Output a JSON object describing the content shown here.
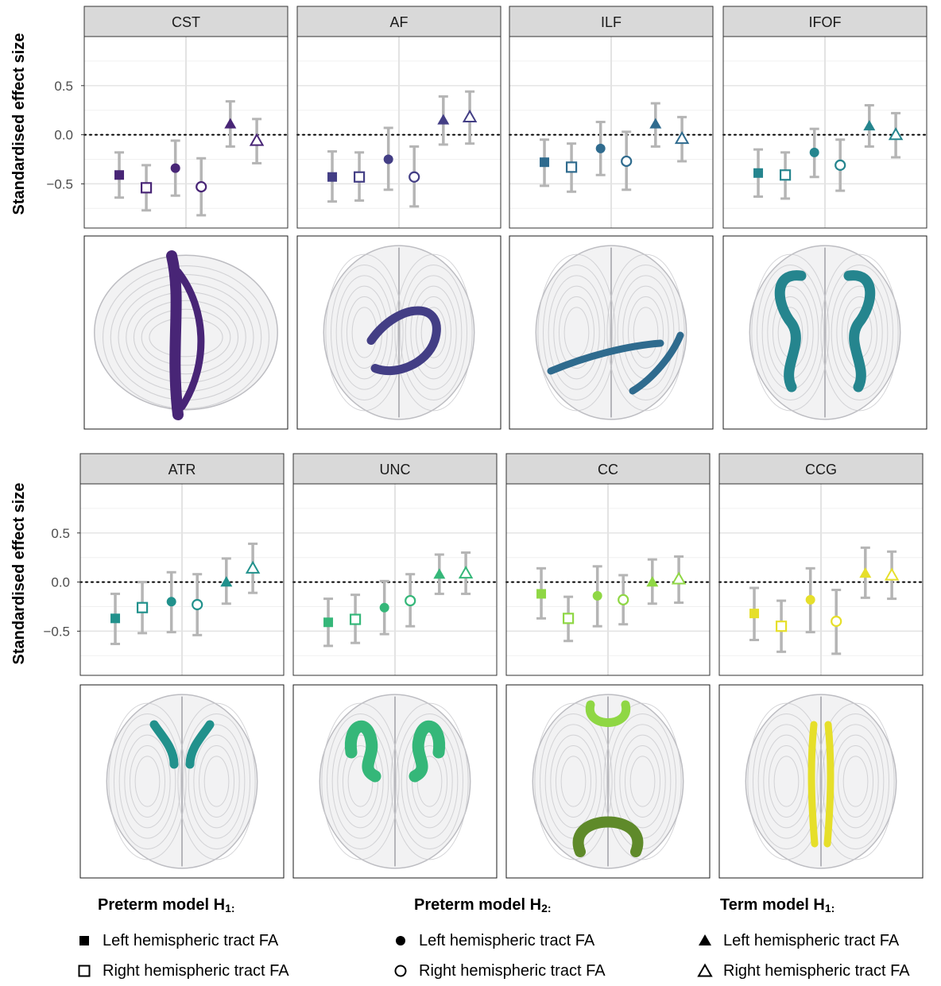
{
  "colors": {
    "CST": "#482576",
    "AF": "#433e85",
    "ILF": "#2f6b8e",
    "IFOF": "#25858e",
    "ATR": "#21918c",
    "UNC": "#35b779",
    "CC": "#8fd744",
    "CCG": "#e6df2a",
    "errorbar": "#b5b5b5",
    "strip": "#d9d9d9"
  },
  "icons": {
    "model_h1_preterm": [
      "filled-square-icon",
      "open-square-icon"
    ],
    "model_h2_preterm": [
      "filled-circle-icon",
      "open-circle-icon"
    ],
    "model_h1_term": [
      "filled-triangle-icon",
      "open-triangle-icon"
    ]
  },
  "chart_data": [
    {
      "type": "scatter",
      "title": "CST",
      "ylabel": "Standardised effect size",
      "ylim": [
        -0.95,
        1.0
      ],
      "yticks": [
        "0.5",
        "0.0",
        "-0.5"
      ],
      "grid": true,
      "reference_line": 0.0,
      "points": [
        {
          "model": "Preterm H1",
          "hemisphere": "Left",
          "y": -0.41,
          "lo": -0.64,
          "hi": -0.18
        },
        {
          "model": "Preterm H1",
          "hemisphere": "Right",
          "y": -0.54,
          "lo": -0.77,
          "hi": -0.31
        },
        {
          "model": "Preterm H2",
          "hemisphere": "Left",
          "y": -0.34,
          "lo": -0.62,
          "hi": -0.06
        },
        {
          "model": "Preterm H2",
          "hemisphere": "Right",
          "y": -0.53,
          "lo": -0.82,
          "hi": -0.24
        },
        {
          "model": "Term H1",
          "hemisphere": "Left",
          "y": 0.11,
          "lo": -0.12,
          "hi": 0.34
        },
        {
          "model": "Term H1",
          "hemisphere": "Right",
          "y": -0.06,
          "lo": -0.29,
          "hi": 0.16
        }
      ]
    },
    {
      "type": "scatter",
      "title": "AF",
      "ylim": [
        -0.95,
        1.0
      ],
      "grid": true,
      "reference_line": 0.0,
      "points": [
        {
          "model": "Preterm H1",
          "hemisphere": "Left",
          "y": -0.43,
          "lo": -0.68,
          "hi": -0.17
        },
        {
          "model": "Preterm H1",
          "hemisphere": "Right",
          "y": -0.43,
          "lo": -0.67,
          "hi": -0.18
        },
        {
          "model": "Preterm H2",
          "hemisphere": "Left",
          "y": -0.25,
          "lo": -0.56,
          "hi": 0.07
        },
        {
          "model": "Preterm H2",
          "hemisphere": "Right",
          "y": -0.43,
          "lo": -0.73,
          "hi": -0.12
        },
        {
          "model": "Term H1",
          "hemisphere": "Left",
          "y": 0.15,
          "lo": -0.1,
          "hi": 0.39
        },
        {
          "model": "Term H1",
          "hemisphere": "Right",
          "y": 0.18,
          "lo": -0.09,
          "hi": 0.44
        }
      ]
    },
    {
      "type": "scatter",
      "title": "ILF",
      "ylim": [
        -0.95,
        1.0
      ],
      "grid": true,
      "reference_line": 0.0,
      "points": [
        {
          "model": "Preterm H1",
          "hemisphere": "Left",
          "y": -0.28,
          "lo": -0.52,
          "hi": -0.05
        },
        {
          "model": "Preterm H1",
          "hemisphere": "Right",
          "y": -0.33,
          "lo": -0.58,
          "hi": -0.09
        },
        {
          "model": "Preterm H2",
          "hemisphere": "Left",
          "y": -0.14,
          "lo": -0.41,
          "hi": 0.13
        },
        {
          "model": "Preterm H2",
          "hemisphere": "Right",
          "y": -0.27,
          "lo": -0.56,
          "hi": 0.03
        },
        {
          "model": "Term H1",
          "hemisphere": "Left",
          "y": 0.11,
          "lo": -0.12,
          "hi": 0.32
        },
        {
          "model": "Term H1",
          "hemisphere": "Right",
          "y": -0.04,
          "lo": -0.27,
          "hi": 0.18
        }
      ]
    },
    {
      "type": "scatter",
      "title": "IFOF",
      "ylim": [
        -0.95,
        1.0
      ],
      "grid": true,
      "reference_line": 0.0,
      "points": [
        {
          "model": "Preterm H1",
          "hemisphere": "Left",
          "y": -0.39,
          "lo": -0.63,
          "hi": -0.15
        },
        {
          "model": "Preterm H1",
          "hemisphere": "Right",
          "y": -0.41,
          "lo": -0.65,
          "hi": -0.18
        },
        {
          "model": "Preterm H2",
          "hemisphere": "Left",
          "y": -0.18,
          "lo": -0.43,
          "hi": 0.06
        },
        {
          "model": "Preterm H2",
          "hemisphere": "Right",
          "y": -0.31,
          "lo": -0.57,
          "hi": -0.05
        },
        {
          "model": "Term H1",
          "hemisphere": "Left",
          "y": 0.09,
          "lo": -0.12,
          "hi": 0.3
        },
        {
          "model": "Term H1",
          "hemisphere": "Right",
          "y": 0.0,
          "lo": -0.23,
          "hi": 0.22
        }
      ]
    },
    {
      "type": "scatter",
      "title": "ATR",
      "ylabel": "Standardised effect size",
      "ylim": [
        -0.95,
        1.0
      ],
      "yticks": [
        "0.5",
        "0.0",
        "-0.5"
      ],
      "grid": true,
      "reference_line": 0.0,
      "points": [
        {
          "model": "Preterm H1",
          "hemisphere": "Left",
          "y": -0.37,
          "lo": -0.63,
          "hi": -0.12
        },
        {
          "model": "Preterm H1",
          "hemisphere": "Right",
          "y": -0.26,
          "lo": -0.52,
          "hi": 0.0
        },
        {
          "model": "Preterm H2",
          "hemisphere": "Left",
          "y": -0.2,
          "lo": -0.51,
          "hi": 0.1
        },
        {
          "model": "Preterm H2",
          "hemisphere": "Right",
          "y": -0.23,
          "lo": -0.54,
          "hi": 0.08
        },
        {
          "model": "Term H1",
          "hemisphere": "Left",
          "y": 0.0,
          "lo": -0.22,
          "hi": 0.24
        },
        {
          "model": "Term H1",
          "hemisphere": "Right",
          "y": 0.14,
          "lo": -0.11,
          "hi": 0.39
        }
      ]
    },
    {
      "type": "scatter",
      "title": "UNC",
      "ylim": [
        -0.95,
        1.0
      ],
      "grid": true,
      "reference_line": 0.0,
      "points": [
        {
          "model": "Preterm H1",
          "hemisphere": "Left",
          "y": -0.41,
          "lo": -0.65,
          "hi": -0.17
        },
        {
          "model": "Preterm H1",
          "hemisphere": "Right",
          "y": -0.38,
          "lo": -0.62,
          "hi": -0.13
        },
        {
          "model": "Preterm H2",
          "hemisphere": "Left",
          "y": -0.26,
          "lo": -0.53,
          "hi": 0.01
        },
        {
          "model": "Preterm H2",
          "hemisphere": "Right",
          "y": -0.19,
          "lo": -0.45,
          "hi": 0.08
        },
        {
          "model": "Term H1",
          "hemisphere": "Left",
          "y": 0.08,
          "lo": -0.12,
          "hi": 0.28
        },
        {
          "model": "Term H1",
          "hemisphere": "Right",
          "y": 0.09,
          "lo": -0.12,
          "hi": 0.3
        }
      ]
    },
    {
      "type": "scatter",
      "title": "CC",
      "ylim": [
        -0.95,
        1.0
      ],
      "grid": true,
      "reference_line": 0.0,
      "points": [
        {
          "model": "Preterm H1",
          "hemisphere": "Left",
          "y": -0.12,
          "lo": -0.37,
          "hi": 0.14
        },
        {
          "model": "Preterm H1",
          "hemisphere": "Right",
          "y": -0.37,
          "lo": -0.6,
          "hi": -0.15
        },
        {
          "model": "Preterm H2",
          "hemisphere": "Left",
          "y": -0.14,
          "lo": -0.45,
          "hi": 0.16
        },
        {
          "model": "Preterm H2",
          "hemisphere": "Right",
          "y": -0.18,
          "lo": -0.43,
          "hi": 0.07
        },
        {
          "model": "Term H1",
          "hemisphere": "Left",
          "y": 0.0,
          "lo": -0.22,
          "hi": 0.23
        },
        {
          "model": "Term H1",
          "hemisphere": "Right",
          "y": 0.03,
          "lo": -0.21,
          "hi": 0.26
        }
      ]
    },
    {
      "type": "scatter",
      "title": "CCG",
      "ylim": [
        -0.95,
        1.0
      ],
      "grid": true,
      "reference_line": 0.0,
      "points": [
        {
          "model": "Preterm H1",
          "hemisphere": "Left",
          "y": -0.32,
          "lo": -0.59,
          "hi": -0.06
        },
        {
          "model": "Preterm H1",
          "hemisphere": "Right",
          "y": -0.45,
          "lo": -0.71,
          "hi": -0.19
        },
        {
          "model": "Preterm H2",
          "hemisphere": "Left",
          "y": -0.18,
          "lo": -0.51,
          "hi": 0.14
        },
        {
          "model": "Preterm H2",
          "hemisphere": "Right",
          "y": -0.4,
          "lo": -0.73,
          "hi": -0.08
        },
        {
          "model": "Term H1",
          "hemisphere": "Left",
          "y": 0.09,
          "lo": -0.16,
          "hi": 0.35
        },
        {
          "model": "Term H1",
          "hemisphere": "Right",
          "y": 0.07,
          "lo": -0.17,
          "hi": 0.31
        }
      ]
    }
  ],
  "legend": {
    "groups": [
      {
        "title": "Preterm model H",
        "sub": "1:",
        "items": [
          "Left hemispheric tract FA",
          "Right hemispheric tract FA"
        ]
      },
      {
        "title": "Preterm model H",
        "sub": "2:",
        "items": [
          "Left hemispheric tract FA",
          "Right hemispheric tract FA"
        ]
      },
      {
        "title": "Term model H",
        "sub": "1:",
        "items": [
          "Left hemispheric tract FA",
          "Right hemispheric tract FA"
        ]
      }
    ]
  }
}
